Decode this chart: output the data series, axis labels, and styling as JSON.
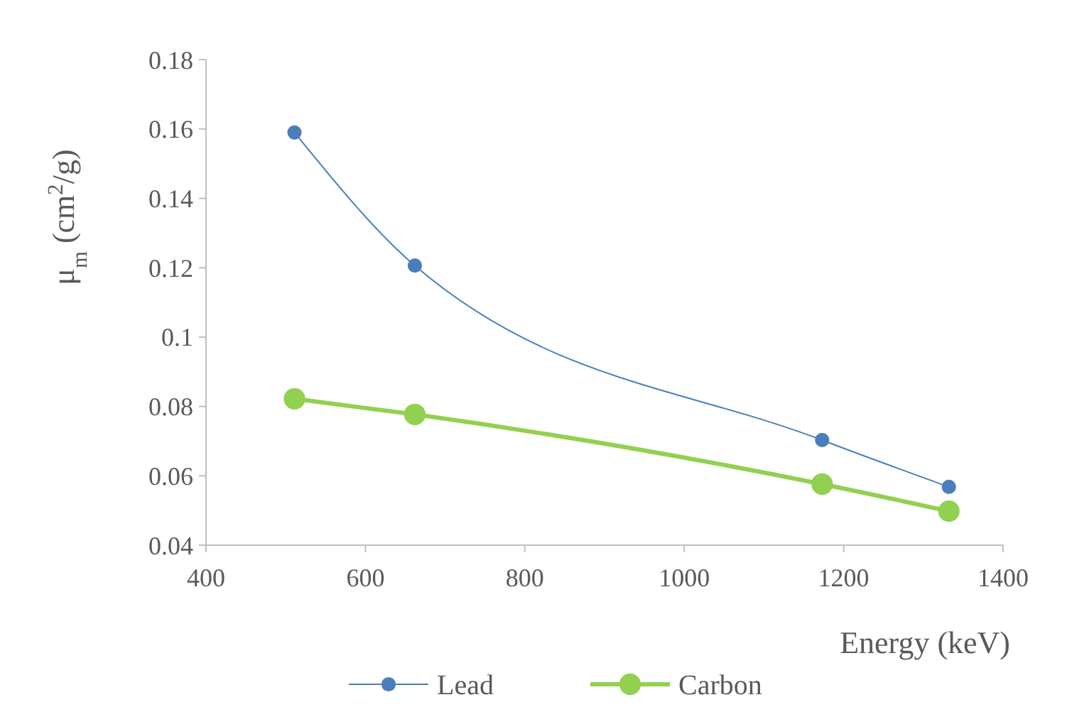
{
  "chart_data": {
    "type": "line",
    "xlabel": "Energy (keV)",
    "ylabel": "μ$_{m}$ (cm$^{2}$/g)",
    "x": [
      511,
      662,
      1173,
      1332
    ],
    "series": [
      {
        "name": "Lead",
        "color": "#4a7ebb",
        "values": [
          0.159,
          0.1206,
          0.0703,
          0.0568
        ]
      },
      {
        "name": "Carbon",
        "color": "#92d050",
        "values": [
          0.0822,
          0.0777,
          0.0576,
          0.0498
        ]
      }
    ],
    "xlim": [
      400,
      1400
    ],
    "xticks": [
      400,
      600,
      800,
      1000,
      1200,
      1400
    ],
    "ylim": [
      0.04,
      0.18
    ],
    "yticks": [
      {
        "value": 0.04,
        "label": "0.04"
      },
      {
        "value": 0.06,
        "label": "0.06"
      },
      {
        "value": 0.08,
        "label": "0.08"
      },
      {
        "value": 0.1,
        "label": "0.1"
      },
      {
        "value": 0.12,
        "label": "0.12"
      },
      {
        "value": 0.14,
        "label": "0.14"
      },
      {
        "value": 0.16,
        "label": "0.16"
      },
      {
        "value": 0.18,
        "label": "0.18"
      }
    ],
    "grid": false,
    "legend": "bottom",
    "marker": "circle"
  }
}
